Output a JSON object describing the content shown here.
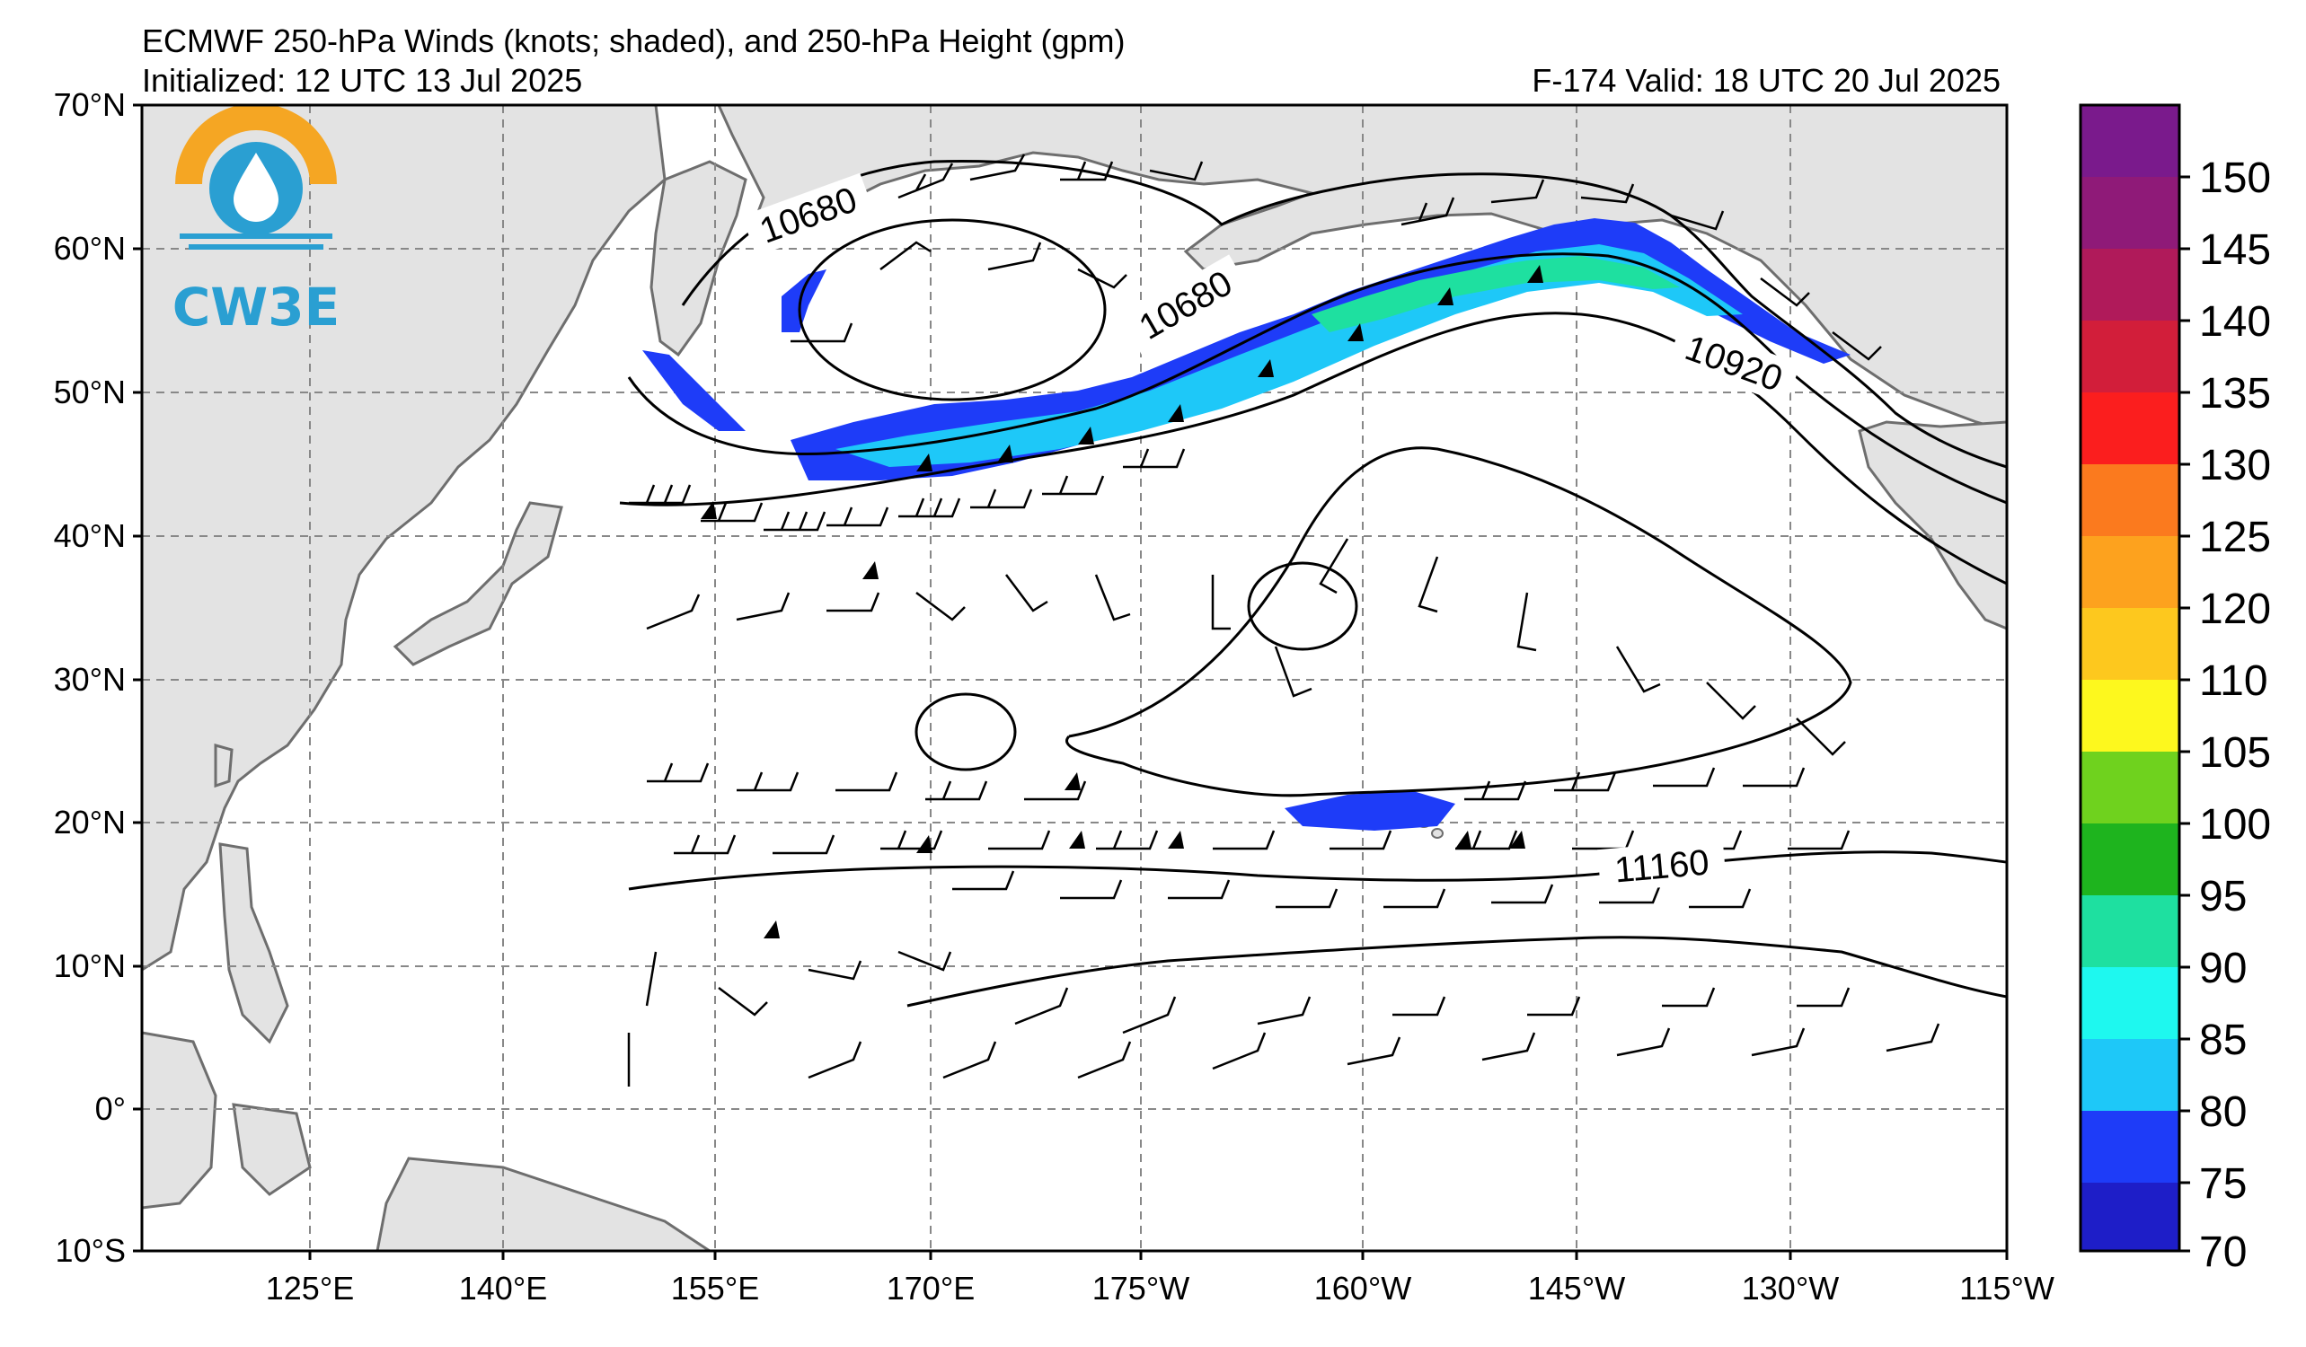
{
  "header": {
    "title": "ECMWF 250-hPa Winds (knots; shaded), and 250-hPa Height (gpm)",
    "initialized": "Initialized: 12 UTC 13 Jul 2025",
    "valid": "F-174  Valid: 18 UTC 20 Jul 2025"
  },
  "logo": {
    "text": "CW3E"
  },
  "axes": {
    "lat_labels": [
      "70°N",
      "60°N",
      "50°N",
      "40°N",
      "30°N",
      "20°N",
      "10°N",
      "0°",
      "10°S"
    ],
    "lon_labels": [
      "125°E",
      "140°E",
      "155°E",
      "170°E",
      "175°W",
      "160°W",
      "145°W",
      "130°W",
      "115°W"
    ]
  },
  "contour_labels": [
    "10680",
    "10680",
    "10920",
    "11160"
  ],
  "colorbar": {
    "labels": [
      "150",
      "145",
      "140",
      "135",
      "130",
      "125",
      "120",
      "110",
      "105",
      "100",
      "95",
      "90",
      "85",
      "80",
      "75",
      "70"
    ],
    "colors": [
      "#7a1a8c",
      "#8f1a78",
      "#b01a5a",
      "#d21e3a",
      "#fb1e1e",
      "#fb7a1e",
      "#fda21e",
      "#fdc81e",
      "#fdf81e",
      "#6fd21e",
      "#1eb41e",
      "#1ee0a0",
      "#1ef8ef",
      "#1ec8f8",
      "#1e3cf8",
      "#1e1ec8"
    ]
  },
  "colors": {
    "land": "#e3e3e3",
    "coast": "#6e6e6e",
    "grid": "#888888",
    "jet_core": "#1e3cf8",
    "jet_mid": "#1ec8f8",
    "jet_fast": "#1ee0a0"
  }
}
